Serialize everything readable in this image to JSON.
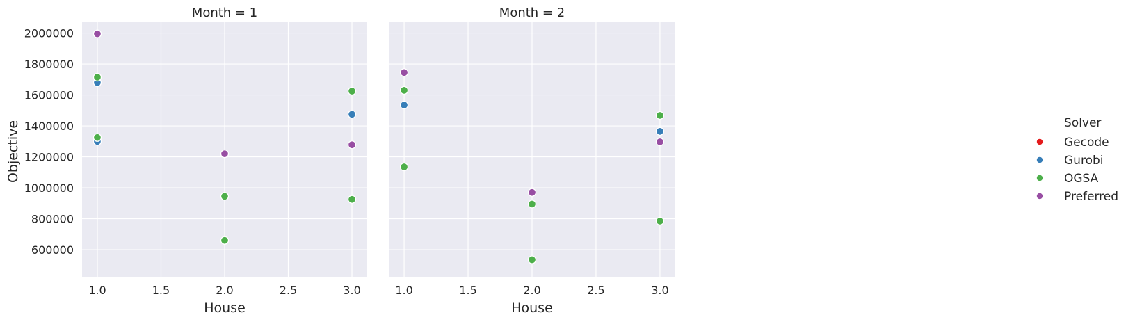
{
  "colors": {
    "panel_bg": "#eaeaf2",
    "grid": "#ffffff",
    "text": "#262626",
    "point_edge": "#ffffff"
  },
  "legend": {
    "title": "Solver",
    "placement": "right",
    "entries": [
      {
        "label": "Gecode",
        "color": "#e41a1c"
      },
      {
        "label": "Gurobi",
        "color": "#377eb8"
      },
      {
        "label": "OGSA",
        "color": "#4daf4a"
      },
      {
        "label": "Preferred",
        "color": "#984ea3"
      }
    ]
  },
  "chart_data": [
    {
      "type": "scatter",
      "title": "Month = 1",
      "xlabel": "House",
      "ylabel": "Objective",
      "xlim": [
        0.88,
        3.12
      ],
      "ylim": [
        425000,
        2070000
      ],
      "xticks": [
        1.0,
        1.5,
        2.0,
        2.5,
        3.0
      ],
      "xtick_labels": [
        "1.0",
        "1.5",
        "2.0",
        "2.5",
        "3.0"
      ],
      "yticks": [
        600000,
        800000,
        1000000,
        1200000,
        1400000,
        1600000,
        1800000,
        2000000
      ],
      "ytick_labels": [
        "600000",
        "800000",
        "1000000",
        "1200000",
        "1400000",
        "1600000",
        "1800000",
        "2000000"
      ],
      "grid": true,
      "series": [
        {
          "name": "Gecode",
          "points": []
        },
        {
          "name": "Gurobi",
          "points": [
            [
              1,
              1680000
            ],
            [
              1,
              1300000
            ],
            [
              3,
              1475000
            ]
          ]
        },
        {
          "name": "OGSA",
          "points": [
            [
              1,
              1715000
            ],
            [
              1,
              1325000
            ],
            [
              2,
              945000
            ],
            [
              2,
              660000
            ],
            [
              3,
              1625000
            ],
            [
              3,
              925000
            ]
          ]
        },
        {
          "name": "Preferred",
          "points": [
            [
              1,
              1995000
            ],
            [
              2,
              1220000
            ],
            [
              3,
              1278000
            ]
          ]
        }
      ]
    },
    {
      "type": "scatter",
      "title": "Month = 2",
      "xlabel": "House",
      "ylabel": "",
      "xlim": [
        0.88,
        3.12
      ],
      "ylim": [
        425000,
        2070000
      ],
      "xticks": [
        1.0,
        1.5,
        2.0,
        2.5,
        3.0
      ],
      "xtick_labels": [
        "1.0",
        "1.5",
        "2.0",
        "2.5",
        "3.0"
      ],
      "yticks": [
        600000,
        800000,
        1000000,
        1200000,
        1400000,
        1600000,
        1800000,
        2000000
      ],
      "ytick_labels": [],
      "grid": true,
      "series": [
        {
          "name": "Gecode",
          "points": []
        },
        {
          "name": "Gurobi",
          "points": [
            [
              1,
              1535000
            ],
            [
              3,
              1365000
            ]
          ]
        },
        {
          "name": "OGSA",
          "points": [
            [
              1,
              1630000
            ],
            [
              1,
              1135000
            ],
            [
              2,
              895000
            ],
            [
              2,
              535000
            ],
            [
              3,
              1468000
            ],
            [
              3,
              785000
            ]
          ]
        },
        {
          "name": "Preferred",
          "points": [
            [
              1,
              1745000
            ],
            [
              2,
              970000
            ],
            [
              3,
              1297000
            ]
          ]
        }
      ]
    }
  ]
}
